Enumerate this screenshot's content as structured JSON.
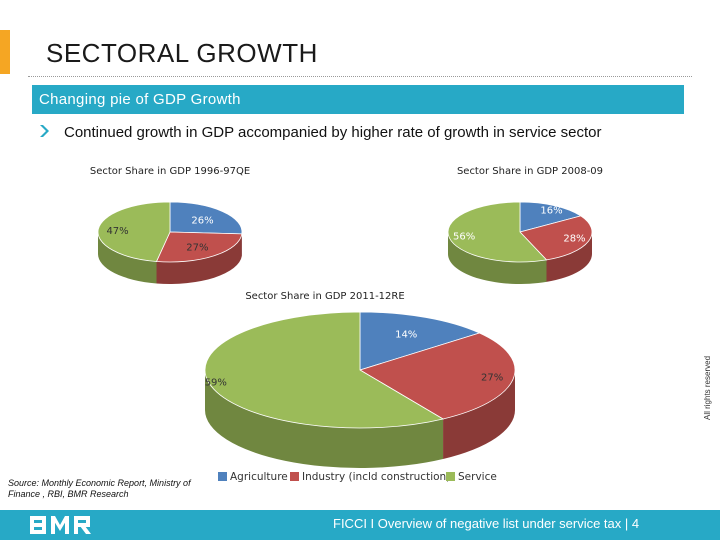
{
  "slide": {
    "title": "SECTORAL GROWTH",
    "banner": "Changing pie of GDP Growth",
    "bullet": "Continued growth in GDP accompanied by higher rate of growth in service sector",
    "source": "Source: Monthly Economic Report, Ministry of Finance , RBI,  BMR Research",
    "side_note": "All rights reserved",
    "footer_text": "FICCI I Overview of negative list under service tax  |  4"
  },
  "colors": {
    "agriculture": "#4f81bd",
    "industry": "#c0504d",
    "service": "#9bbb59",
    "accent": "#f5a623",
    "banner": "#27a9c6"
  },
  "legend": [
    "Agriculture",
    "Industry (incld construction)",
    "Service"
  ],
  "chart_data": [
    {
      "type": "pie",
      "title": "Sector Share in GDP 1996-97QE",
      "categories": [
        "Agriculture",
        "Industry (incld construction)",
        "Service"
      ],
      "values": [
        26,
        27,
        47
      ],
      "labels": [
        "26%",
        "27%",
        "47%"
      ]
    },
    {
      "type": "pie",
      "title": "Sector Share in GDP 2008-09",
      "categories": [
        "Agriculture",
        "Industry (incld construction)",
        "Service"
      ],
      "values": [
        16,
        28,
        56
      ],
      "labels": [
        "16%",
        "28%",
        "56%"
      ]
    },
    {
      "type": "pie",
      "title": "Sector Share in GDP 2011-12RE",
      "categories": [
        "Agriculture",
        "Industry (incld construction)",
        "Service"
      ],
      "values": [
        14,
        27,
        59
      ],
      "labels": [
        "14%",
        "27%",
        "59%"
      ]
    }
  ]
}
